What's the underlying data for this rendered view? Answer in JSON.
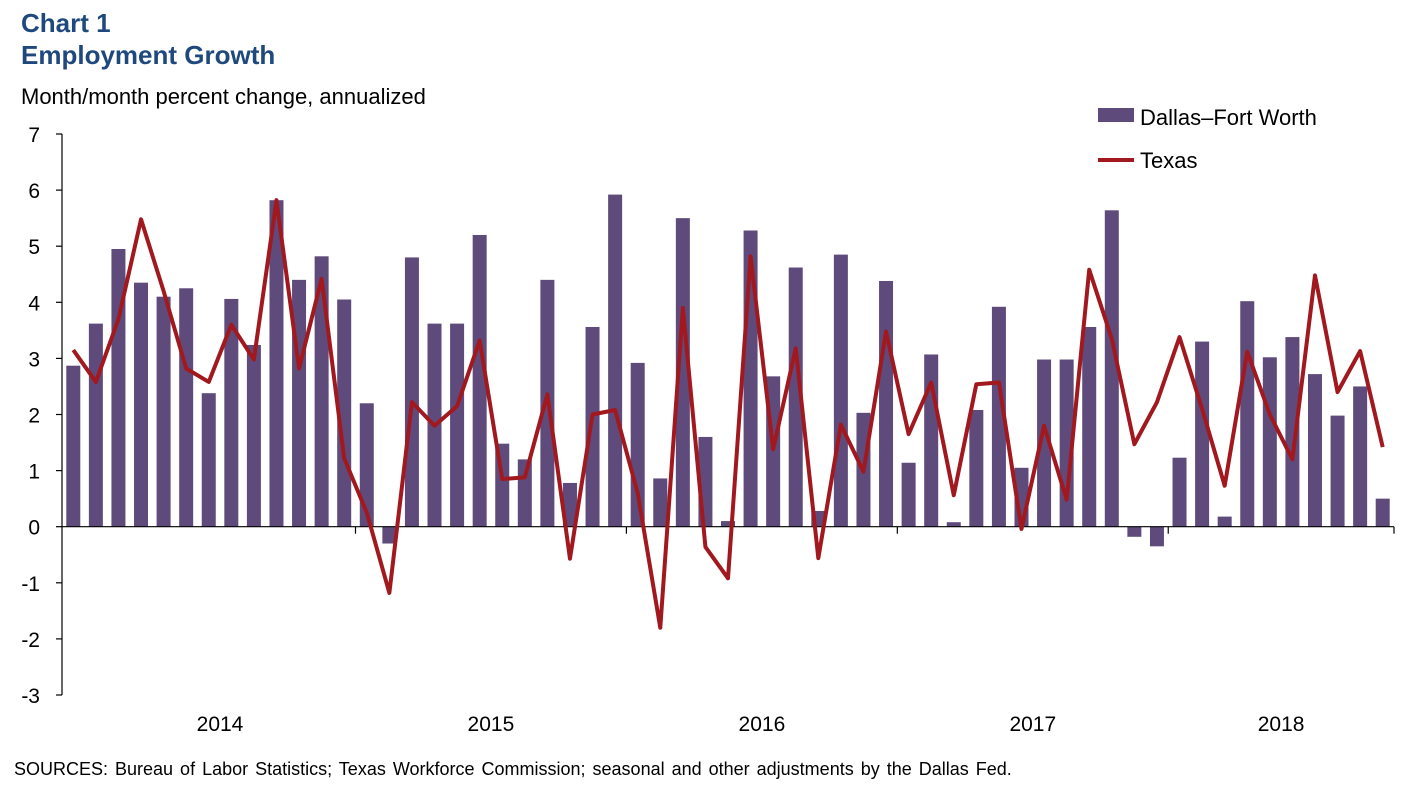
{
  "header": {
    "chart_number": "Chart 1",
    "title": "Employment Growth",
    "y_label": "Month/month percent change, annualized"
  },
  "source": "SOURCES: Bureau of Labor Statistics; Texas Workforce Commission; seasonal and other adjustments by the Dallas Fed.",
  "colors": {
    "bar": "#5f4b7b",
    "line": "#a1191f",
    "title": "#1f497d"
  },
  "chart_data": {
    "type": "bar",
    "title": "Employment Growth",
    "ylabel": "Month/month percent change, annualized",
    "ylim": [
      -3,
      7
    ],
    "yticks": [
      7,
      6,
      5,
      4,
      3,
      2,
      1,
      0,
      -1,
      -2,
      -3
    ],
    "x_year_labels": [
      "2014",
      "2015",
      "2016",
      "2017",
      "2018"
    ],
    "legend_position": "top-right",
    "series": [
      {
        "name": "Dallas–Fort Worth",
        "type": "bar",
        "values": [
          2.87,
          3.62,
          4.95,
          4.35,
          4.1,
          4.25,
          2.38,
          4.06,
          3.24,
          5.82,
          4.4,
          4.82,
          4.05,
          2.2,
          -0.3,
          4.8,
          3.62,
          3.62,
          5.2,
          1.48,
          1.2,
          4.4,
          0.78,
          3.56,
          5.92,
          2.92,
          0.86,
          5.5,
          1.6,
          0.1,
          5.28,
          2.68,
          4.62,
          0.28,
          4.85,
          2.03,
          4.38,
          1.14,
          3.07,
          0.08,
          2.08,
          3.92,
          1.05,
          2.98,
          2.98,
          3.56,
          5.64,
          -0.18,
          -0.35,
          1.23,
          3.3,
          0.18,
          4.02,
          3.02,
          3.38,
          2.72,
          1.98,
          2.5,
          0.5
        ]
      },
      {
        "name": "Texas",
        "type": "line",
        "values": [
          3.15,
          2.58,
          3.7,
          5.48,
          4.2,
          2.82,
          2.58,
          3.6,
          2.98,
          5.82,
          2.82,
          4.42,
          1.22,
          0.25,
          -1.18,
          2.22,
          1.8,
          2.15,
          3.32,
          0.85,
          0.88,
          2.36,
          -0.57,
          2.0,
          2.08,
          0.6,
          -1.8,
          3.9,
          -0.36,
          -0.92,
          4.82,
          1.38,
          3.18,
          -0.56,
          1.82,
          0.98,
          3.48,
          1.65,
          2.57,
          0.56,
          2.54,
          2.57,
          -0.04,
          1.8,
          0.48,
          4.58,
          3.35,
          1.47,
          2.22,
          3.38,
          2.1,
          0.73,
          3.12,
          2.0,
          1.2,
          4.48,
          2.4,
          3.13,
          1.42
        ]
      }
    ]
  }
}
